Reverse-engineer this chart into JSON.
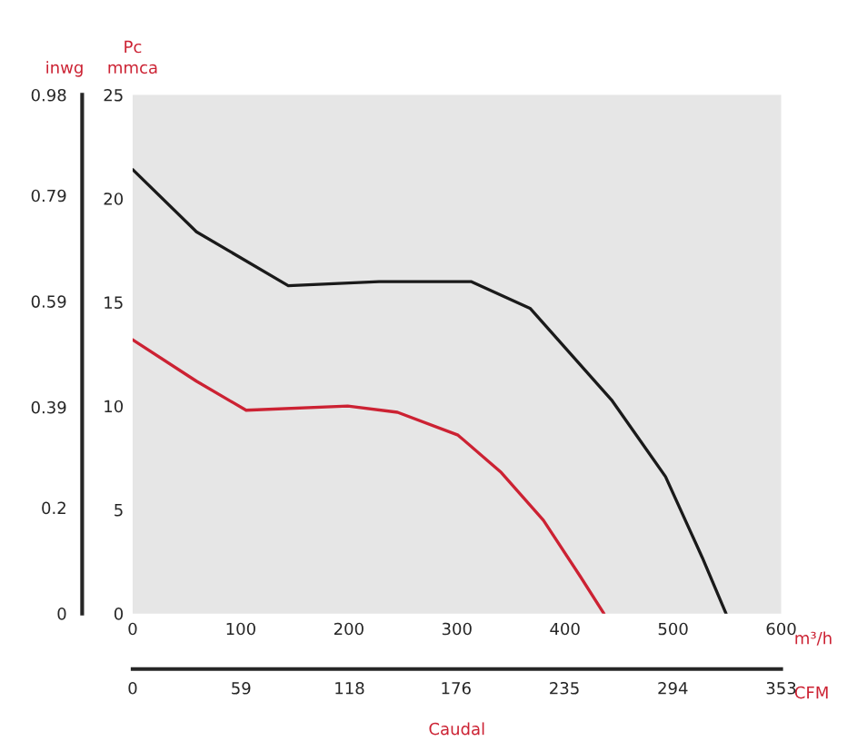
{
  "chart_data": {
    "type": "line",
    "xlabel": "m³/h",
    "x2label": "CFM",
    "ylabel": "mmca",
    "y2label": "inwg",
    "annotations": [
      "Pc",
      "Caudal"
    ],
    "xlim": [
      0,
      600
    ],
    "xticks": [
      0,
      100,
      200,
      300,
      400,
      500,
      600
    ],
    "x2lim": [
      0,
      353
    ],
    "x2ticks": [
      0,
      59,
      118,
      176,
      235,
      294,
      353
    ],
    "ylim": [
      0,
      25
    ],
    "yticks": [
      0,
      5,
      10,
      15,
      20,
      25
    ],
    "y2lim": [
      0,
      0.98
    ],
    "y2ticks": [
      0,
      0.2,
      0.39,
      0.59,
      0.79,
      0.98
    ],
    "grid": false,
    "series": [
      {
        "color": "#1a1a1a",
        "x": [
          0,
          59,
          144,
          228,
          313,
          368,
          443,
          493,
          527,
          549
        ],
        "values": [
          21.4,
          18.4,
          15.8,
          16.0,
          16.0,
          14.7,
          10.3,
          6.6,
          2.7,
          0
        ]
      },
      {
        "color": "#cc2233",
        "x": [
          0,
          59,
          105,
          199,
          245,
          301,
          341,
          380,
          414,
          436
        ],
        "values": [
          13.2,
          11.2,
          9.8,
          10.0,
          9.7,
          8.6,
          6.8,
          4.5,
          1.8,
          0
        ]
      }
    ]
  }
}
